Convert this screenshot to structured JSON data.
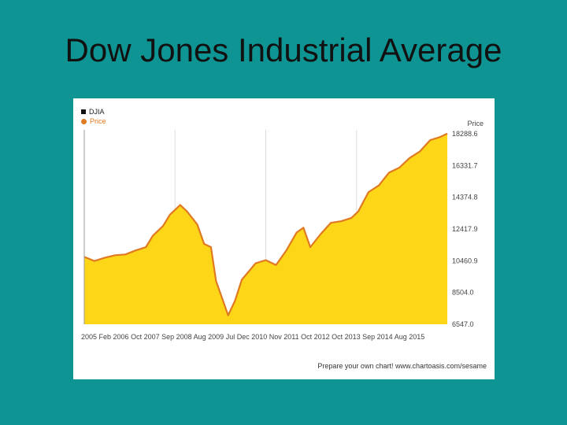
{
  "slide": {
    "title": "Dow Jones Industrial Average"
  },
  "legend": {
    "index_label": "DJIA",
    "series_label": "Price"
  },
  "credit": "Prepare your own chart! www.chartoasis.com/sesame",
  "colors": {
    "background": "#0f9494",
    "line": "#e07a22",
    "fill": "#fdd617",
    "grid": "#dddddd"
  },
  "chart_data": {
    "type": "area",
    "ylabel": "Price",
    "ylim": [
      6547.0,
      18288.5
    ],
    "yticks": [
      6547.0,
      8504.0,
      10460.9,
      12417.9,
      14374.8,
      16331.7,
      18288.6
    ],
    "ytick_labels": [
      "6547.0",
      "8504.0",
      "10460.9",
      "12417.9",
      "14374.8",
      "16331.7",
      "18288.6"
    ],
    "xtick_labels": [
      "2005",
      "Feb 2006",
      "Oct 2007",
      "Sep 2008",
      "Aug 2009",
      "Jul",
      "Dec 2010",
      "Nov 2011",
      "Oct 2012",
      "Oct 2013",
      "Sep 2014",
      "Aug 2015"
    ],
    "x": [
      2005.0,
      2005.3,
      2005.6,
      2005.9,
      2006.2,
      2006.5,
      2006.8,
      2007.0,
      2007.3,
      2007.5,
      2007.8,
      2008.0,
      2008.3,
      2008.5,
      2008.7,
      2008.85,
      2009.0,
      2009.2,
      2009.4,
      2009.6,
      2009.8,
      2010.0,
      2010.3,
      2010.6,
      2010.9,
      2011.2,
      2011.4,
      2011.6,
      2011.9,
      2012.2,
      2012.5,
      2012.8,
      2013.0,
      2013.3,
      2013.6,
      2013.9,
      2014.2,
      2014.5,
      2014.8,
      2015.1,
      2015.4,
      2015.6
    ],
    "values": [
      10700,
      10450,
      10650,
      10800,
      10850,
      11100,
      11300,
      12000,
      12600,
      13300,
      13900,
      13500,
      12700,
      11500,
      11300,
      9200,
      8300,
      7100,
      8000,
      9300,
      9800,
      10300,
      10500,
      10200,
      11100,
      12200,
      12500,
      11300,
      12100,
      12800,
      12900,
      13100,
      13500,
      14700,
      15100,
      15900,
      16200,
      16800,
      17200,
      17900,
      18100,
      18300
    ]
  }
}
